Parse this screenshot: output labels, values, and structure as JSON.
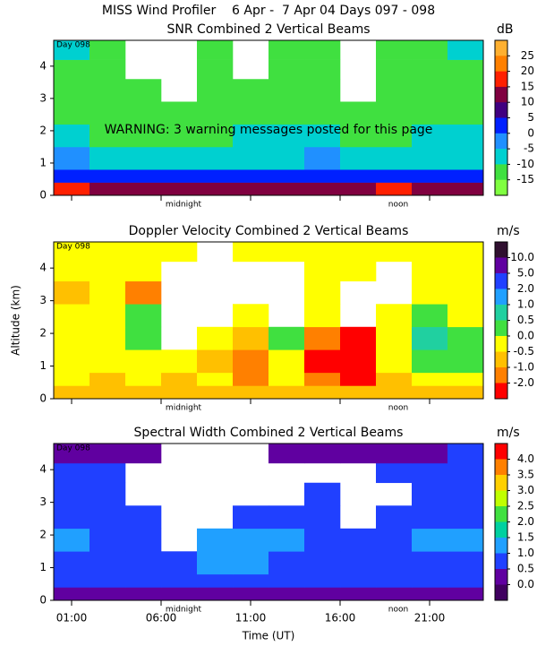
{
  "title": "MISS Wind Profiler    6 Apr -  7 Apr 04 Days 097 - 098",
  "chart_data": [
    {
      "type": "heatmap",
      "title": "SNR Combined 2 Vertical Beams",
      "annotations": [
        {
          "text": "Day 098"
        },
        {
          "text": "WARNING: 3 warning messages posted for this page"
        },
        {
          "text": "midnight",
          "x": 7
        },
        {
          "text": "noon",
          "x": 19
        }
      ],
      "xlim": [
        0,
        24
      ],
      "xticks": [
        1,
        6,
        11,
        16,
        21
      ],
      "ylim": [
        0,
        4.8
      ],
      "yticks": [
        0,
        1,
        2,
        3,
        4
      ],
      "time_bins": [
        0,
        2,
        4,
        6,
        8,
        10,
        12,
        14,
        16,
        18,
        20,
        22,
        24
      ],
      "alt_bins": [
        0,
        0.4,
        0.8,
        1.5,
        2.2,
        2.9,
        3.6,
        4.2,
        4.8
      ],
      "values": [
        [
          16,
          14,
          14,
          13,
          13,
          13,
          13,
          13,
          14,
          16,
          14,
          13
        ],
        [
          3,
          3,
          2,
          3,
          3,
          3,
          3,
          3,
          3,
          3,
          3,
          4
        ],
        [
          -3,
          -8,
          -8,
          -8,
          -8,
          -8,
          -8,
          -3,
          -8,
          -8,
          -8,
          -8
        ],
        [
          -8,
          -12,
          -12,
          -12,
          -12,
          -8,
          -8,
          -8,
          -12,
          -12,
          -8,
          -8
        ],
        [
          -12,
          -13,
          -13,
          -13,
          -13,
          -12,
          -12,
          -12,
          -13,
          -13,
          -12,
          -12
        ],
        [
          -13,
          -13,
          -14,
          null,
          -14,
          -14,
          -13,
          -14,
          null,
          -14,
          -13,
          -12
        ],
        [
          -13,
          -14,
          null,
          null,
          -14,
          null,
          -14,
          -14,
          null,
          -14,
          -14,
          -12
        ],
        [
          -8,
          -14,
          null,
          null,
          -14,
          null,
          -14,
          -14,
          null,
          -14,
          -14,
          -8
        ]
      ],
      "colorbar": {
        "unit": "dB",
        "ticks": [
          25,
          20,
          15,
          10,
          5,
          0,
          -5,
          -10,
          -15
        ],
        "colors": [
          "#ffb030",
          "#ff8000",
          "#ff2000",
          "#800040",
          "#400080",
          "#0020ff",
          "#2090ff",
          "#00d0d0",
          "#40e040",
          "#80ff40"
        ]
      }
    },
    {
      "type": "heatmap",
      "title": "Doppler Velocity Combined 2 Vertical Beams",
      "ylabel": "Altitude (km)",
      "annotations": [
        {
          "text": "Day 098"
        },
        {
          "text": "midnight",
          "x": 7
        },
        {
          "text": "noon",
          "x": 19
        }
      ],
      "xlim": [
        0,
        24
      ],
      "xticks": [
        1,
        6,
        11,
        16,
        21
      ],
      "ylim": [
        0,
        4.8
      ],
      "yticks": [
        0,
        1,
        2,
        3,
        4
      ],
      "time_bins": [
        0,
        2,
        4,
        6,
        8,
        10,
        12,
        14,
        16,
        18,
        20,
        22,
        24
      ],
      "alt_bins": [
        0,
        0.4,
        0.8,
        1.5,
        2.2,
        2.9,
        3.6,
        4.2,
        4.8
      ],
      "values": [
        [
          -0.7,
          -0.7,
          -0.7,
          -0.7,
          -0.7,
          -0.7,
          -0.7,
          -0.7,
          -0.7,
          -0.7,
          -0.7,
          -0.7
        ],
        [
          -0.2,
          -0.7,
          -0.2,
          -0.7,
          -0.2,
          -1.5,
          -0.2,
          -1.5,
          -2.5,
          -0.7,
          -0.2,
          -0.2
        ],
        [
          -0.2,
          -0.2,
          -0.2,
          -0.2,
          -0.7,
          -1.5,
          -0.2,
          -2.5,
          -2.5,
          -0.2,
          0.3,
          0.3
        ],
        [
          -0.2,
          -0.2,
          0.3,
          null,
          -0.2,
          -0.7,
          0.3,
          -1.5,
          -2.5,
          -0.2,
          0.7,
          0.3
        ],
        [
          -0.2,
          -0.2,
          0.3,
          null,
          null,
          -0.2,
          null,
          -0.2,
          null,
          -0.2,
          0.3,
          -0.2
        ],
        [
          -0.7,
          -0.2,
          -1.5,
          null,
          null,
          null,
          null,
          -0.2,
          null,
          null,
          -0.2,
          -0.2
        ],
        [
          -0.2,
          -0.2,
          -0.2,
          null,
          null,
          null,
          null,
          -0.2,
          -0.2,
          null,
          -0.2,
          -0.2
        ],
        [
          -0.2,
          -0.2,
          -0.2,
          -0.2,
          null,
          -0.2,
          -0.2,
          -0.2,
          -0.2,
          -0.2,
          -0.2,
          -0.2
        ]
      ],
      "colorbar": {
        "unit": "m/s",
        "ticks": [
          {
            "value": 10,
            "label": "10.0"
          },
          {
            "value": 5,
            "label": "5.0"
          },
          {
            "value": 2,
            "label": "2.0"
          },
          {
            "value": 1,
            "label": "1.0"
          },
          0.5,
          {
            "value": 0,
            "label": "0.0"
          },
          -0.5,
          {
            "value": -1,
            "label": "-1.0"
          },
          {
            "value": -2,
            "label": "-2.0"
          }
        ],
        "colors": [
          "#301030",
          "#6000a0",
          "#2040ff",
          "#20a0ff",
          "#20d0a0",
          "#40e040",
          "#ffff00",
          "#ffc000",
          "#ff8000",
          "#ff0000"
        ]
      }
    },
    {
      "type": "heatmap",
      "title": "Spectral Width Combined 2 Vertical Beams",
      "xlabel": "Time (UT)",
      "annotations": [
        {
          "text": "Day 098"
        },
        {
          "text": "midnight",
          "x": 7
        },
        {
          "text": "noon",
          "x": 19
        }
      ],
      "xlim": [
        0,
        24
      ],
      "xticks": [
        {
          "value": 1,
          "label": "01:00"
        },
        {
          "value": 6,
          "label": "06:00"
        },
        {
          "value": 11,
          "label": "11:00"
        },
        {
          "value": 16,
          "label": "16:00"
        },
        {
          "value": 21,
          "label": "21:00"
        }
      ],
      "ylim": [
        0,
        4.8
      ],
      "yticks": [
        0,
        1,
        2,
        3,
        4
      ],
      "time_bins": [
        0,
        2,
        4,
        6,
        8,
        10,
        12,
        14,
        16,
        18,
        20,
        22,
        24
      ],
      "alt_bins": [
        0,
        0.4,
        0.8,
        1.5,
        2.2,
        2.9,
        3.6,
        4.2,
        4.8
      ],
      "values": [
        [
          0.3,
          0.3,
          0.3,
          0.3,
          0.3,
          0.3,
          0.3,
          0.3,
          0.3,
          0.3,
          0.3,
          0.3
        ],
        [
          0.7,
          0.7,
          0.8,
          0.7,
          0.7,
          0.7,
          0.7,
          0.7,
          0.7,
          0.7,
          0.7,
          0.7
        ],
        [
          0.8,
          0.8,
          0.7,
          0.8,
          1.2,
          1.2,
          0.8,
          0.7,
          0.7,
          0.8,
          0.8,
          0.8
        ],
        [
          1.2,
          0.8,
          0.7,
          null,
          1.2,
          1.3,
          1.2,
          0.8,
          0.8,
          0.8,
          1.2,
          1.2
        ],
        [
          0.8,
          0.7,
          0.7,
          null,
          null,
          0.8,
          0.8,
          0.8,
          null,
          0.7,
          0.8,
          0.8
        ],
        [
          0.7,
          0.7,
          null,
          null,
          null,
          null,
          null,
          0.7,
          null,
          null,
          0.7,
          0.7
        ],
        [
          0.7,
          0.7,
          null,
          null,
          null,
          null,
          null,
          null,
          null,
          0.7,
          0.7,
          0.7
        ],
        [
          0.3,
          0.3,
          0.3,
          null,
          null,
          null,
          0.3,
          0.3,
          0.3,
          0.3,
          0.3,
          0.7
        ]
      ],
      "colorbar": {
        "unit": "m/s",
        "ticks": [
          {
            "value": 4,
            "label": "4.0"
          },
          3.5,
          {
            "value": 3,
            "label": "3.0"
          },
          2.5,
          {
            "value": 2,
            "label": "2.0"
          },
          1.5,
          {
            "value": 1,
            "label": "1.0"
          },
          0.5,
          {
            "value": 0,
            "label": "0.0"
          }
        ],
        "colors": [
          "#ff0000",
          "#ff8000",
          "#ffd000",
          "#c0ff00",
          "#40e040",
          "#00d0a0",
          "#20a0ff",
          "#2040ff",
          "#6000a0",
          "#400060"
        ]
      }
    }
  ]
}
